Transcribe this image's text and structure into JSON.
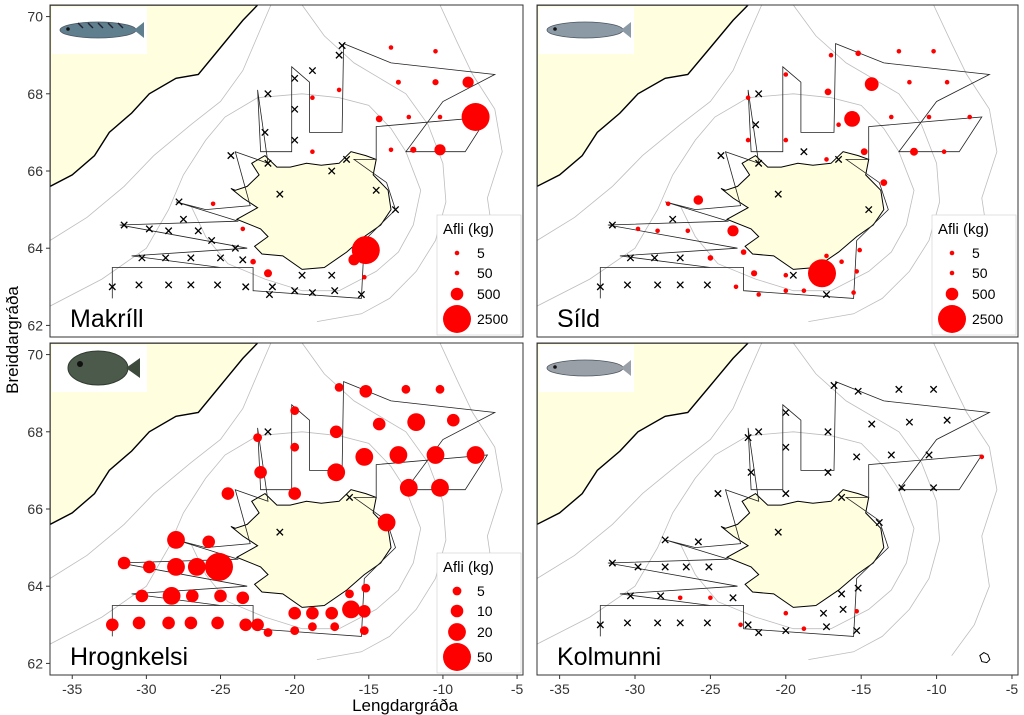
{
  "figure": {
    "x_axis_label": "Lengdargráða",
    "y_axis_label": "Breiddargráða",
    "x_ticks": [
      -35,
      -30,
      -25,
      -20,
      -15,
      -10,
      -5
    ],
    "y_ticks": [
      62,
      64,
      66,
      68,
      70
    ],
    "x_tick_labels": [
      "-35",
      "-30",
      "-25",
      "-20",
      "-15",
      "-10",
      "-5"
    ],
    "y_tick_labels": [
      "62",
      "64",
      "66",
      "68",
      "70"
    ],
    "x_range": [
      -36.5,
      -4.6
    ],
    "y_range": [
      61.7,
      70.3
    ],
    "land_color": "#FFFFE0",
    "catch_color": "#FF0000",
    "zero_marker": "x-mark"
  },
  "panels": [
    {
      "id": "makrill",
      "name": "Makríll",
      "fish_icon": "mackerel-photo",
      "legend": {
        "title": "Afli (kg)",
        "labels": [
          "5",
          "50",
          "500",
          "2500"
        ],
        "values": [
          5,
          50,
          500,
          2500
        ]
      },
      "catches": [
        {
          "lon": -13.5,
          "lat": 69.2,
          "kg": 20
        },
        {
          "lon": -10.5,
          "lat": 69.1,
          "kg": 40
        },
        {
          "lon": -13,
          "lat": 68.3,
          "kg": 80
        },
        {
          "lon": -10.5,
          "lat": 68.3,
          "kg": 120
        },
        {
          "lon": -8.3,
          "lat": 68.3,
          "kg": 400
        },
        {
          "lon": -17,
          "lat": 68.1,
          "kg": 5
        },
        {
          "lon": -14.3,
          "lat": 67.35,
          "kg": 150
        },
        {
          "lon": -12.3,
          "lat": 67.4,
          "kg": 5
        },
        {
          "lon": -10.2,
          "lat": 67.4,
          "kg": 40
        },
        {
          "lon": -7.8,
          "lat": 67.4,
          "kg": 2500
        },
        {
          "lon": -18.8,
          "lat": 67.9,
          "kg": 5
        },
        {
          "lon": -18.8,
          "lat": 66.5,
          "kg": 5
        },
        {
          "lon": -13.5,
          "lat": 66.55,
          "kg": 40
        },
        {
          "lon": -12,
          "lat": 66.55,
          "kg": 120
        },
        {
          "lon": -10.2,
          "lat": 66.55,
          "kg": 400
        },
        {
          "lon": -25.5,
          "lat": 65.15,
          "kg": 5
        },
        {
          "lon": -23.5,
          "lat": 64.5,
          "kg": 5
        },
        {
          "lon": -15.2,
          "lat": 63.95,
          "kg": 2500
        },
        {
          "lon": -16,
          "lat": 63.7,
          "kg": 400
        },
        {
          "lon": -22.8,
          "lat": 63.65,
          "kg": 100
        },
        {
          "lon": -21.8,
          "lat": 63.35,
          "kg": 200
        },
        {
          "lon": -15.3,
          "lat": 63.25,
          "kg": 5
        }
      ],
      "zeros": [
        [
          -16.8,
          69.25
        ],
        [
          -18.8,
          68.6
        ],
        [
          -20,
          68.4
        ],
        [
          -17,
          69.0
        ],
        [
          -21.8,
          68.0
        ],
        [
          -22.0,
          67.0
        ],
        [
          -20.0,
          67.6
        ],
        [
          -20.0,
          66.8
        ],
        [
          -21.8,
          66.2
        ],
        [
          -24.3,
          66.4
        ],
        [
          -21.0,
          65.4
        ],
        [
          -27.8,
          65.2
        ],
        [
          -27.5,
          64.75
        ],
        [
          -26.5,
          64.45
        ],
        [
          -25.6,
          64.2
        ],
        [
          -24.0,
          64.0
        ],
        [
          -29.8,
          64.5
        ],
        [
          -28.5,
          64.45
        ],
        [
          -31.5,
          64.6
        ],
        [
          -30.3,
          63.75
        ],
        [
          -28.7,
          63.75
        ],
        [
          -27.0,
          63.75
        ],
        [
          -25.0,
          63.75
        ],
        [
          -23.5,
          63.7
        ],
        [
          -32.3,
          63.0
        ],
        [
          -30.5,
          63.05
        ],
        [
          -28.5,
          63.05
        ],
        [
          -27.0,
          63.05
        ],
        [
          -25.2,
          63.05
        ],
        [
          -23.3,
          63.0
        ],
        [
          -21.5,
          63.0
        ],
        [
          -20.0,
          62.9
        ],
        [
          -18.8,
          62.85
        ],
        [
          -17.3,
          62.9
        ],
        [
          -15.5,
          62.8
        ],
        [
          -21.7,
          62.8
        ],
        [
          -17.5,
          63.3
        ],
        [
          -19.5,
          63.3
        ],
        [
          -14.5,
          65.5
        ],
        [
          -13.2,
          65.0
        ],
        [
          -16.5,
          66.3
        ],
        [
          -17.5,
          66.0
        ]
      ]
    },
    {
      "id": "sild",
      "name": "Síld",
      "fish_icon": "herring-photo",
      "legend": {
        "title": "Afli (kg)",
        "labels": [
          "5",
          "50",
          "500",
          "2500"
        ],
        "values": [
          5,
          50,
          500,
          2500
        ]
      },
      "catches": [
        {
          "lon": -17,
          "lat": 69.0,
          "kg": 5
        },
        {
          "lon": -15.2,
          "lat": 69.05,
          "kg": 100
        },
        {
          "lon": -12.5,
          "lat": 69.1,
          "kg": 20
        },
        {
          "lon": -10.2,
          "lat": 69.1,
          "kg": 40
        },
        {
          "lon": -20,
          "lat": 68.5,
          "kg": 10
        },
        {
          "lon": -14.3,
          "lat": 68.25,
          "kg": 600
        },
        {
          "lon": -11.8,
          "lat": 68.3,
          "kg": 40
        },
        {
          "lon": -9.3,
          "lat": 68.3,
          "kg": 5
        },
        {
          "lon": -17.2,
          "lat": 68.05,
          "kg": 150
        },
        {
          "lon": -22.5,
          "lat": 67.9,
          "kg": 5
        },
        {
          "lon": -16.5,
          "lat": 67.2,
          "kg": 5
        },
        {
          "lon": -15.6,
          "lat": 67.35,
          "kg": 800
        },
        {
          "lon": -13,
          "lat": 67.4,
          "kg": 15
        },
        {
          "lon": -10.5,
          "lat": 67.4,
          "kg": 10
        },
        {
          "lon": -7.8,
          "lat": 67.4,
          "kg": 40
        },
        {
          "lon": -22.5,
          "lat": 66.8,
          "kg": 5
        },
        {
          "lon": -20,
          "lat": 66.8,
          "kg": 5
        },
        {
          "lon": -17.3,
          "lat": 66.3,
          "kg": 5
        },
        {
          "lon": -14.8,
          "lat": 66.5,
          "kg": 150
        },
        {
          "lon": -11.5,
          "lat": 66.5,
          "kg": 200
        },
        {
          "lon": -9.5,
          "lat": 66.5,
          "kg": 5
        },
        {
          "lon": -13.5,
          "lat": 65.7,
          "kg": 150
        },
        {
          "lon": -25.8,
          "lat": 65.25,
          "kg": 300
        },
        {
          "lon": -27.8,
          "lat": 65.15,
          "kg": 10
        },
        {
          "lon": -26.5,
          "lat": 64.45,
          "kg": 20
        },
        {
          "lon": -23.5,
          "lat": 64.45,
          "kg": 400
        },
        {
          "lon": -29.8,
          "lat": 64.5,
          "kg": 10
        },
        {
          "lon": -28.5,
          "lat": 64.45,
          "kg": 10
        },
        {
          "lon": -22.8,
          "lat": 63.9,
          "kg": 100
        },
        {
          "lon": -15.1,
          "lat": 63.95,
          "kg": 60
        },
        {
          "lon": -25.0,
          "lat": 63.75,
          "kg": 100
        },
        {
          "lon": -16.3,
          "lat": 63.65,
          "kg": 50
        },
        {
          "lon": -15.3,
          "lat": 63.4,
          "kg": 40
        },
        {
          "lon": -17.6,
          "lat": 63.35,
          "kg": 2500
        },
        {
          "lon": -22.1,
          "lat": 63.35,
          "kg": 120
        },
        {
          "lon": -20.0,
          "lat": 63.3,
          "kg": 15
        },
        {
          "lon": -21.8,
          "lat": 62.8,
          "kg": 5
        },
        {
          "lon": -18.8,
          "lat": 62.9,
          "kg": 20
        },
        {
          "lon": -23.3,
          "lat": 63.0,
          "kg": 10
        },
        {
          "lon": -20.0,
          "lat": 62.9,
          "kg": 5
        },
        {
          "lon": -15.5,
          "lat": 62.85,
          "kg": 5
        },
        {
          "lon": -17.3,
          "lat": 63.8,
          "kg": 5
        }
      ],
      "zeros": [
        [
          -21.8,
          68.0
        ],
        [
          -22.0,
          67.2
        ],
        [
          -21.8,
          66.2
        ],
        [
          -18.8,
          66.5
        ],
        [
          -20.5,
          65.4
        ],
        [
          -24.3,
          66.4
        ],
        [
          -27.5,
          64.75
        ],
        [
          -31.5,
          64.6
        ],
        [
          -30.3,
          63.75
        ],
        [
          -28.7,
          63.75
        ],
        [
          -27.0,
          63.75
        ],
        [
          -32.3,
          63.0
        ],
        [
          -30.5,
          63.05
        ],
        [
          -28.5,
          63.05
        ],
        [
          -27.0,
          63.05
        ],
        [
          -25.2,
          63.05
        ],
        [
          -17.3,
          62.8
        ],
        [
          -19.5,
          63.3
        ],
        [
          -14.5,
          65.0
        ],
        [
          -16.5,
          66.3
        ]
      ]
    },
    {
      "id": "hrognkelsi",
      "name": "Hrognkelsi",
      "fish_icon": "lumpfish-photo",
      "legend": {
        "title": "Afli (kg)",
        "labels": [
          "5",
          "10",
          "20",
          "50"
        ],
        "values": [
          5,
          10,
          20,
          50
        ]
      },
      "catches": [
        {
          "lon": -17,
          "lat": 69.15,
          "kg": 5
        },
        {
          "lon": -15.2,
          "lat": 69.05,
          "kg": 10
        },
        {
          "lon": -12.5,
          "lat": 69.1,
          "kg": 5
        },
        {
          "lon": -10.2,
          "lat": 69.1,
          "kg": 5
        },
        {
          "lon": -20,
          "lat": 68.55,
          "kg": 5
        },
        {
          "lon": -14.3,
          "lat": 68.2,
          "kg": 10
        },
        {
          "lon": -11.8,
          "lat": 68.25,
          "kg": 20
        },
        {
          "lon": -9.3,
          "lat": 68.3,
          "kg": 10
        },
        {
          "lon": -17.2,
          "lat": 68.0,
          "kg": 10
        },
        {
          "lon": -22.5,
          "lat": 67.85,
          "kg": 5
        },
        {
          "lon": -20,
          "lat": 67.6,
          "kg": 5
        },
        {
          "lon": -15.3,
          "lat": 67.35,
          "kg": 20
        },
        {
          "lon": -13,
          "lat": 67.4,
          "kg": 20
        },
        {
          "lon": -10.5,
          "lat": 67.4,
          "kg": 20
        },
        {
          "lon": -7.8,
          "lat": 67.4,
          "kg": 20
        },
        {
          "lon": -22.3,
          "lat": 66.95,
          "kg": 10
        },
        {
          "lon": -17.2,
          "lat": 66.95,
          "kg": 20
        },
        {
          "lon": -20,
          "lat": 66.4,
          "kg": 10
        },
        {
          "lon": -24.5,
          "lat": 66.4,
          "kg": 10
        },
        {
          "lon": -12.3,
          "lat": 66.55,
          "kg": 20
        },
        {
          "lon": -10.2,
          "lat": 66.55,
          "kg": 20
        },
        {
          "lon": -13.8,
          "lat": 65.65,
          "kg": 20
        },
        {
          "lon": -28,
          "lat": 65.2,
          "kg": 20
        },
        {
          "lon": -25.8,
          "lat": 65.15,
          "kg": 10
        },
        {
          "lon": -29.8,
          "lat": 64.5,
          "kg": 10
        },
        {
          "lon": -28,
          "lat": 64.5,
          "kg": 20
        },
        {
          "lon": -26.6,
          "lat": 64.5,
          "kg": 20
        },
        {
          "lon": -25.1,
          "lat": 64.5,
          "kg": 50
        },
        {
          "lon": -31.5,
          "lat": 64.6,
          "kg": 10
        },
        {
          "lon": -30.3,
          "lat": 63.75,
          "kg": 10
        },
        {
          "lon": -28.3,
          "lat": 63.75,
          "kg": 20
        },
        {
          "lon": -26.9,
          "lat": 63.75,
          "kg": 10
        },
        {
          "lon": -25.0,
          "lat": 63.75,
          "kg": 10
        },
        {
          "lon": -23.5,
          "lat": 63.7,
          "kg": 10
        },
        {
          "lon": -32.3,
          "lat": 63.0,
          "kg": 10
        },
        {
          "lon": -30.5,
          "lat": 63.05,
          "kg": 10
        },
        {
          "lon": -28.5,
          "lat": 63.05,
          "kg": 10
        },
        {
          "lon": -27.0,
          "lat": 63.05,
          "kg": 10
        },
        {
          "lon": -25.2,
          "lat": 63.05,
          "kg": 10
        },
        {
          "lon": -23.3,
          "lat": 63.0,
          "kg": 10
        },
        {
          "lon": -22.5,
          "lat": 63.0,
          "kg": 10
        },
        {
          "lon": -21.8,
          "lat": 62.8,
          "kg": 5
        },
        {
          "lon": -20.0,
          "lat": 63.3,
          "kg": 10
        },
        {
          "lon": -18.8,
          "lat": 63.3,
          "kg": 10
        },
        {
          "lon": -17.5,
          "lat": 63.3,
          "kg": 10
        },
        {
          "lon": -16.2,
          "lat": 63.4,
          "kg": 20
        },
        {
          "lon": -15.3,
          "lat": 63.35,
          "kg": 10
        },
        {
          "lon": -15.2,
          "lat": 63.95,
          "kg": 5
        },
        {
          "lon": -15.3,
          "lat": 62.85,
          "kg": 5
        },
        {
          "lon": -18.8,
          "lat": 62.95,
          "kg": 5
        },
        {
          "lon": -17.3,
          "lat": 62.95,
          "kg": 5
        },
        {
          "lon": -20.0,
          "lat": 62.85,
          "kg": 5
        },
        {
          "lon": -16.3,
          "lat": 63.8,
          "kg": 5
        }
      ],
      "zeros": [
        [
          -21.8,
          68.0
        ],
        [
          -16.3,
          66.3
        ],
        [
          -21.0,
          65.4
        ]
      ]
    },
    {
      "id": "kolmunni",
      "name": "Kolmunni",
      "fish_icon": "blue-whiting-photo",
      "legend": null,
      "catches": [
        {
          "lon": -7.0,
          "lat": 67.35,
          "kg": 5
        },
        {
          "lon": -27.0,
          "lat": 63.7,
          "kg": 5
        },
        {
          "lon": -25.0,
          "lat": 63.7,
          "kg": 5
        },
        {
          "lon": -23.0,
          "lat": 63.0,
          "kg": 5
        },
        {
          "lon": -20.0,
          "lat": 63.3,
          "kg": 5
        },
        {
          "lon": -18.8,
          "lat": 62.9,
          "kg": 5
        },
        {
          "lon": -15.3,
          "lat": 63.35,
          "kg": 5
        }
      ],
      "zeros": [
        [
          -16.8,
          69.2
        ],
        [
          -15.2,
          69.05
        ],
        [
          -12.5,
          69.1
        ],
        [
          -10.2,
          69.1
        ],
        [
          -20,
          68.5
        ],
        [
          -14.3,
          68.2
        ],
        [
          -11.8,
          68.25
        ],
        [
          -9.3,
          68.3
        ],
        [
          -17.2,
          68.0
        ],
        [
          -22.5,
          67.85
        ],
        [
          -20,
          67.6
        ],
        [
          -15.3,
          67.35
        ],
        [
          -13,
          67.4
        ],
        [
          -10.5,
          67.4
        ],
        [
          -22.3,
          66.95
        ],
        [
          -17.2,
          66.95
        ],
        [
          -20,
          66.4
        ],
        [
          -24.5,
          66.4
        ],
        [
          -12.3,
          66.55
        ],
        [
          -10.2,
          66.55
        ],
        [
          -13.8,
          65.65
        ],
        [
          -28,
          65.2
        ],
        [
          -25.8,
          65.15
        ],
        [
          -29.8,
          64.5
        ],
        [
          -28,
          64.5
        ],
        [
          -26.6,
          64.5
        ],
        [
          -25.1,
          64.5
        ],
        [
          -31.5,
          64.6
        ],
        [
          -30.3,
          63.75
        ],
        [
          -28.3,
          63.75
        ],
        [
          -23.5,
          63.7
        ],
        [
          -32.3,
          63.0
        ],
        [
          -30.5,
          63.05
        ],
        [
          -28.5,
          63.05
        ],
        [
          -27.0,
          63.05
        ],
        [
          -25.2,
          63.05
        ],
        [
          -22.5,
          63.0
        ],
        [
          -21.8,
          62.8
        ],
        [
          -17.5,
          63.3
        ],
        [
          -16.2,
          63.4
        ],
        [
          -15.2,
          63.95
        ],
        [
          -15.3,
          62.85
        ],
        [
          -17.3,
          62.95
        ],
        [
          -20.0,
          62.85
        ],
        [
          -16.3,
          63.8
        ],
        [
          -20.5,
          65.4
        ],
        [
          -16.3,
          66.3
        ],
        [
          -21.8,
          68.0
        ]
      ]
    }
  ]
}
